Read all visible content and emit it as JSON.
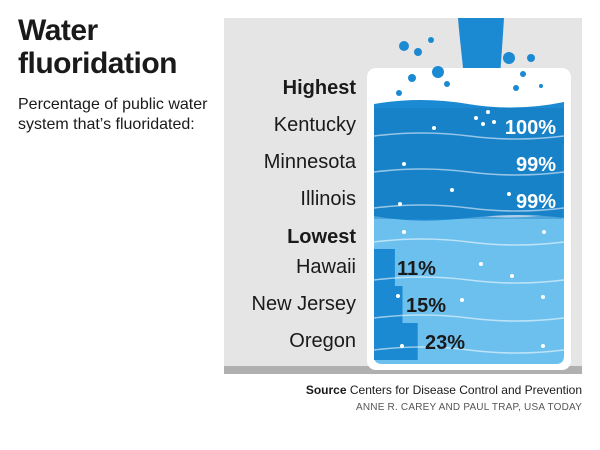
{
  "header": {
    "title": "Water fluoridation",
    "subtitle": "Percentage of public water system that’s fluoridated:"
  },
  "footer": {
    "source_label": "Source",
    "source_text": "Centers for Disease Control and Prevention",
    "credit": "ANNE R. CAREY AND PAUL TRAP, USA TODAY"
  },
  "colors": {
    "panel": "#e5e5e5",
    "water_dark": "#1b8ad3",
    "water_light": "#6cc0ee",
    "glass": "#ffffff",
    "bubble": "#ffffff"
  },
  "chart_data": {
    "type": "bar",
    "orientation": "horizontal",
    "title": "Water fluoridation",
    "subtitle": "Percentage of public water system that’s fluoridated:",
    "xlim": [
      0,
      100
    ],
    "unit": "%",
    "groups": [
      {
        "label": "Highest",
        "items": [
          {
            "category": "Kentucky",
            "value": 100,
            "label": "100%"
          },
          {
            "category": "Minnesota",
            "value": 99,
            "label": "99%"
          },
          {
            "category": "Illinois",
            "value": 99,
            "label": "99%"
          }
        ]
      },
      {
        "label": "Lowest",
        "items": [
          {
            "category": "Hawaii",
            "value": 11,
            "label": "11%"
          },
          {
            "category": "New Jersey",
            "value": 15,
            "label": "15%"
          },
          {
            "category": "Oregon",
            "value": 23,
            "label": "23%"
          }
        ]
      }
    ]
  }
}
